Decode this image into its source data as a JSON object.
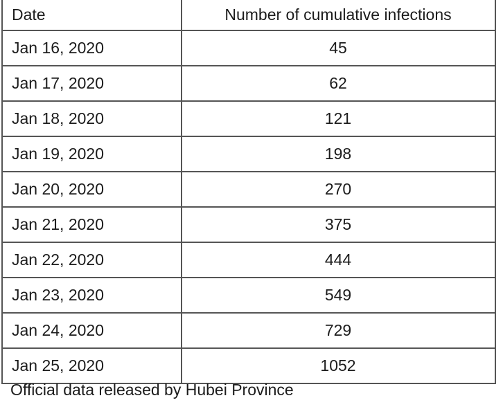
{
  "page": {
    "background": "#ffffff",
    "border_color": "#555555",
    "text_color": "#1c1c1c"
  },
  "table": {
    "headers": [
      "Date",
      "Number of cumulative infections"
    ],
    "rows": [
      [
        "Jan 16, 2020",
        "45"
      ],
      [
        "Jan 17, 2020",
        "62"
      ],
      [
        "Jan 18, 2020",
        "121"
      ],
      [
        "Jan 19, 2020",
        "198"
      ],
      [
        "Jan 20, 2020",
        "270"
      ],
      [
        "Jan 21, 2020",
        "375"
      ],
      [
        "Jan 22, 2020",
        "444"
      ],
      [
        "Jan 23, 2020",
        "549"
      ],
      [
        "Jan 24, 2020",
        "729"
      ],
      [
        "Jan 25, 2020",
        "1052"
      ]
    ]
  },
  "caption": "Official data released by Hubei Province",
  "chart_data": {
    "type": "table",
    "title": "",
    "columns": [
      "Date",
      "Number of cumulative infections"
    ],
    "categories": [
      "Jan 16, 2020",
      "Jan 17, 2020",
      "Jan 18, 2020",
      "Jan 19, 2020",
      "Jan 20, 2020",
      "Jan 21, 2020",
      "Jan 22, 2020",
      "Jan 23, 2020",
      "Jan 24, 2020",
      "Jan 25, 2020"
    ],
    "values": [
      45,
      62,
      121,
      198,
      270,
      375,
      444,
      549,
      729,
      1052
    ],
    "caption": "Official data released by Hubei Province"
  }
}
